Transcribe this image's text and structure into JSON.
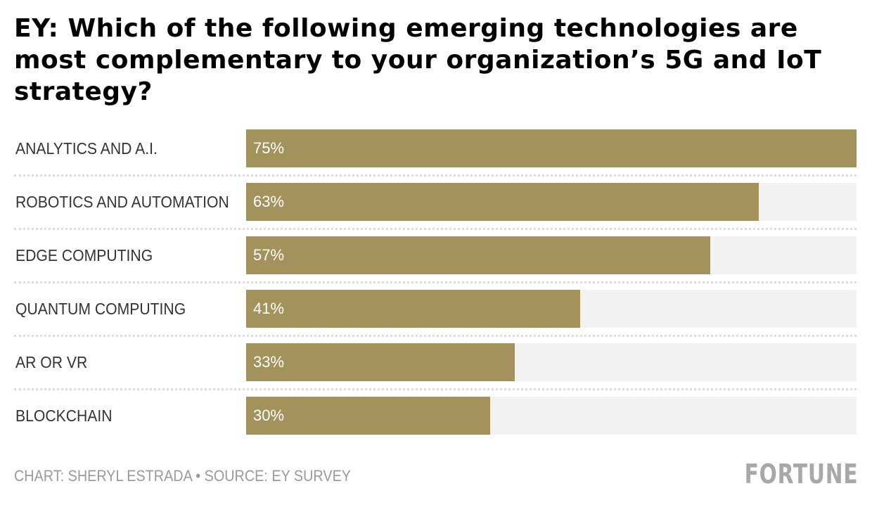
{
  "chart_data": {
    "type": "bar",
    "orientation": "horizontal",
    "title": "EY: Which of the following emerging technologies are most complementary to your organization’s 5G and IoT strategy?",
    "categories": [
      "ANALYTICS AND A.I.",
      "ROBOTICS AND AUTOMATION",
      "EDGE COMPUTING",
      "QUANTUM COMPUTING",
      "AR OR VR",
      "BLOCKCHAIN"
    ],
    "values": [
      75,
      63,
      57,
      41,
      33,
      30
    ],
    "value_labels": [
      "75%",
      "63%",
      "57%",
      "41%",
      "33%",
      "30%"
    ],
    "xlim": [
      0,
      75
    ],
    "xlabel": "",
    "ylabel": "",
    "grid": false,
    "bar_color": "#a3925b",
    "track_color": "#f2f2f2"
  },
  "footer": {
    "credit": "CHART: SHERYL ESTRADA • SOURCE: EY SURVEY",
    "logo": "FORTUNE"
  }
}
